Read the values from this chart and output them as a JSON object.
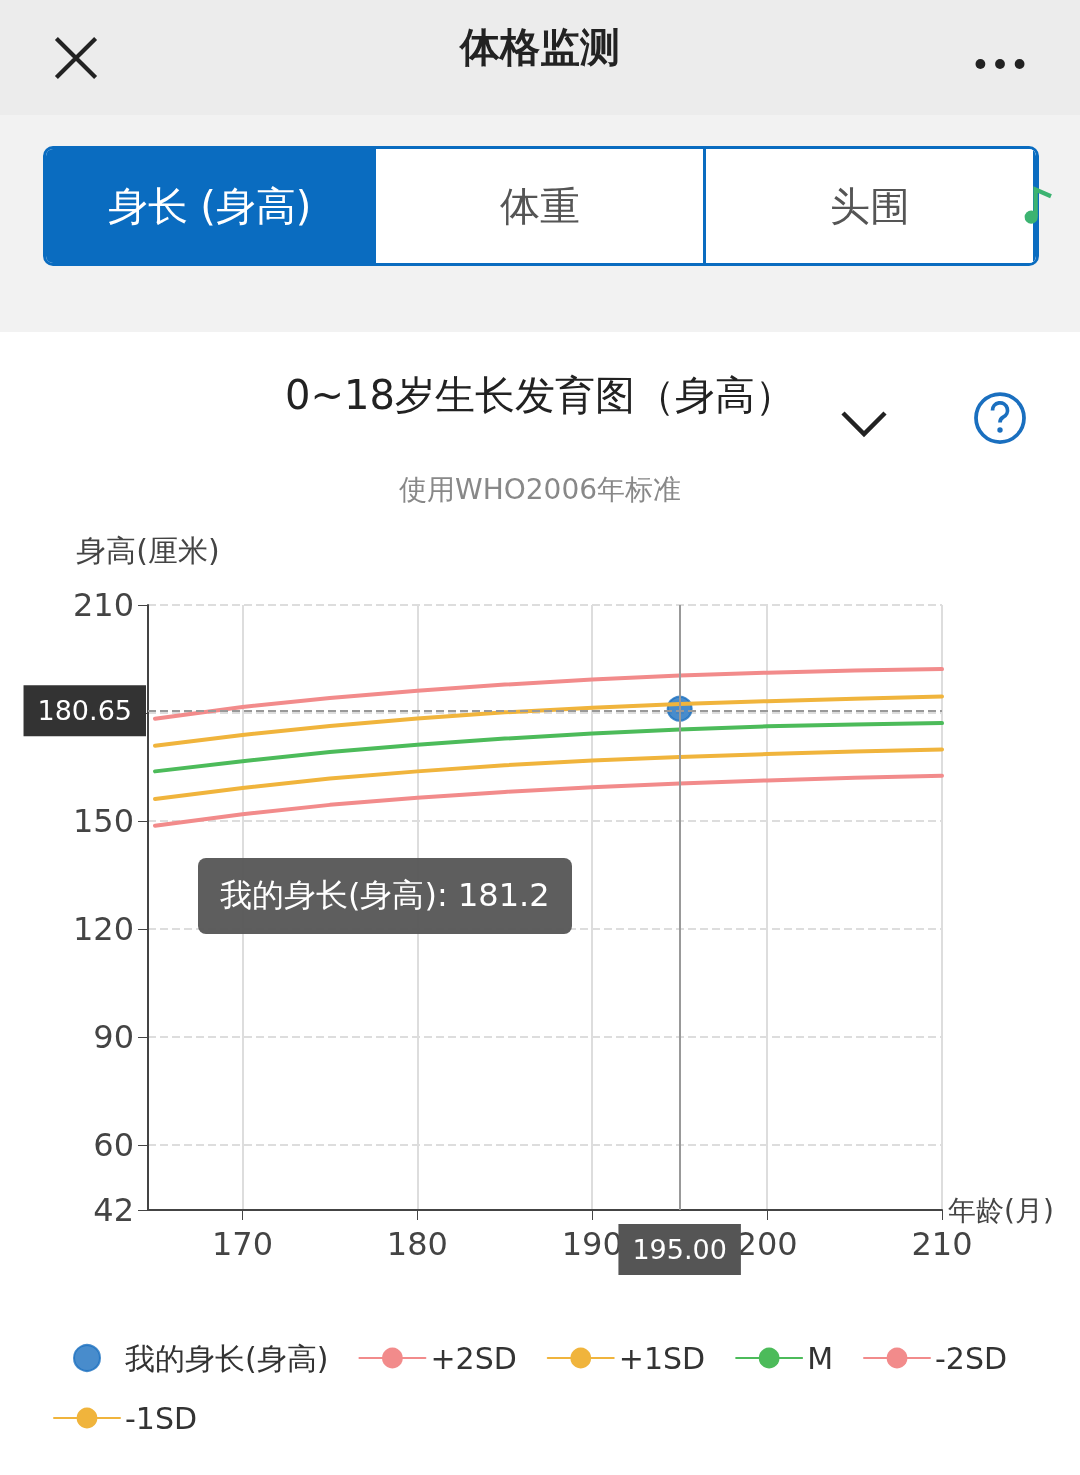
{
  "chart_data": {
    "type": "line",
    "title": "0~18岁生长发育图（身高）",
    "subtitle": "使用WHO2006年标准",
    "xlabel": "年龄(月)",
    "ylabel": "身高(厘米)",
    "annotations": [
      "体格监测",
      "身长 (身高)",
      "体重",
      "头围",
      "我的身长(身高): 181.2"
    ],
    "x": [
      165,
      170,
      175,
      180,
      185,
      190,
      195,
      200,
      205,
      210
    ],
    "series": [
      {
        "name": "我的身长(身高)",
        "type": "scatter",
        "marker": "circle",
        "color": "#1a6fbf",
        "x": [
          195
        ],
        "values": [
          181.2
        ]
      },
      {
        "name": "+2SD",
        "color": "#f28b8b",
        "values": [
          178.4,
          181.7,
          184.2,
          186.2,
          187.9,
          189.3,
          190.4,
          191.2,
          191.8,
          192.2
        ]
      },
      {
        "name": "+1SD",
        "color": "#f0b43c",
        "values": [
          170.9,
          173.9,
          176.4,
          178.5,
          180.2,
          181.5,
          182.5,
          183.3,
          184.0,
          184.6
        ]
      },
      {
        "name": "M",
        "color": "#4cbb5a",
        "values": [
          163.8,
          166.6,
          169.2,
          171.2,
          172.9,
          174.3,
          175.4,
          176.3,
          176.8,
          177.2
        ]
      },
      {
        "name": "-2SD",
        "color": "#f28b8b",
        "values": [
          148.7,
          151.9,
          154.5,
          156.5,
          158.1,
          159.4,
          160.4,
          161.3,
          162.0,
          162.6
        ]
      },
      {
        "name": "-1SD",
        "color": "#f0b43c",
        "values": [
          156.1,
          159.2,
          161.8,
          163.8,
          165.5,
          166.8,
          167.8,
          168.6,
          169.3,
          169.9
        ]
      }
    ],
    "xlim": [
      164.6,
      210
    ],
    "xticks": [
      170,
      180,
      190,
      200,
      210
    ],
    "ylim": [
      42,
      210
    ],
    "yticks": [
      42,
      60,
      90,
      120,
      150,
      {
        "value": 180,
        "label": null
      },
      210
    ],
    "ref_lines": [
      {
        "axis": "y",
        "value": 180.65,
        "label": "180.65",
        "color": "#999999",
        "line_style": "dashed"
      },
      {
        "axis": "x",
        "value": 195,
        "label": "195.00",
        "color": "#999999",
        "line_style": "solid"
      }
    ],
    "grid": true,
    "legend": "bottom",
    "marker": "none",
    "line_style": "solid"
  }
}
